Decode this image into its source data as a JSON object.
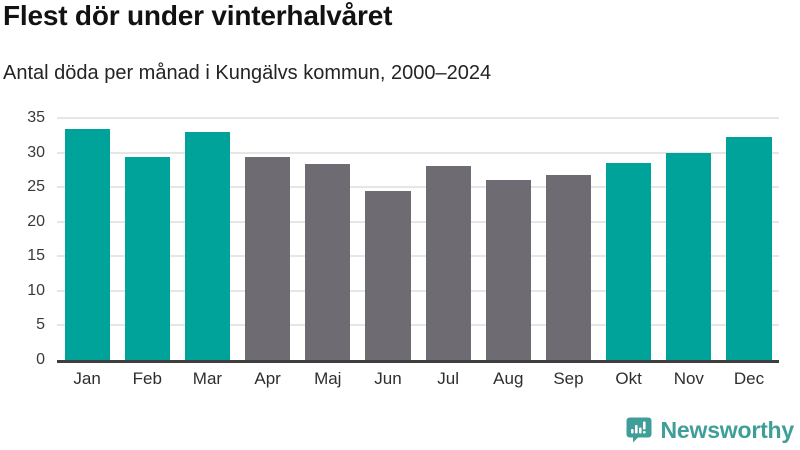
{
  "header": {
    "title": "Flest dör under vinterhalvåret",
    "subtitle": "Antal döda per månad i Kungälvs kommun, 2000–2024"
  },
  "chart_data": {
    "type": "bar",
    "title": "Flest dör under vinterhalvåret",
    "subtitle": "Antal döda per månad i Kungälvs kommun, 2000–2024",
    "categories": [
      "Jan",
      "Feb",
      "Mar",
      "Apr",
      "Maj",
      "Jun",
      "Jul",
      "Aug",
      "Sep",
      "Okt",
      "Nov",
      "Dec"
    ],
    "values": [
      33.4,
      29.4,
      33.0,
      29.3,
      28.3,
      24.4,
      28.0,
      26.0,
      26.7,
      28.5,
      30.0,
      32.2
    ],
    "bar_color_keys": [
      "highlight",
      "highlight",
      "highlight",
      "muted",
      "muted",
      "muted",
      "muted",
      "muted",
      "muted",
      "highlight",
      "highlight",
      "highlight"
    ],
    "highlighted_categories": [
      "Jan",
      "Feb",
      "Mar",
      "Okt",
      "Nov",
      "Dec"
    ],
    "xlabel": "",
    "ylabel": "",
    "ylim": [
      0,
      35
    ],
    "yticks": [
      0,
      5,
      10,
      15,
      20,
      25,
      30,
      35
    ],
    "grid": true,
    "legend": "none",
    "colors": {
      "highlight": "#00a39a",
      "muted": "#6e6b72",
      "gridline": "#e6e6e6",
      "axis_line": "#3f3f3f",
      "tick_label": "#3a3a3a"
    }
  },
  "branding": {
    "logo_text": "Newsworthy",
    "logo_color": "#3f9f98",
    "logo_icon": "newsworthy-speech-bubble-bar-chart-icon"
  }
}
